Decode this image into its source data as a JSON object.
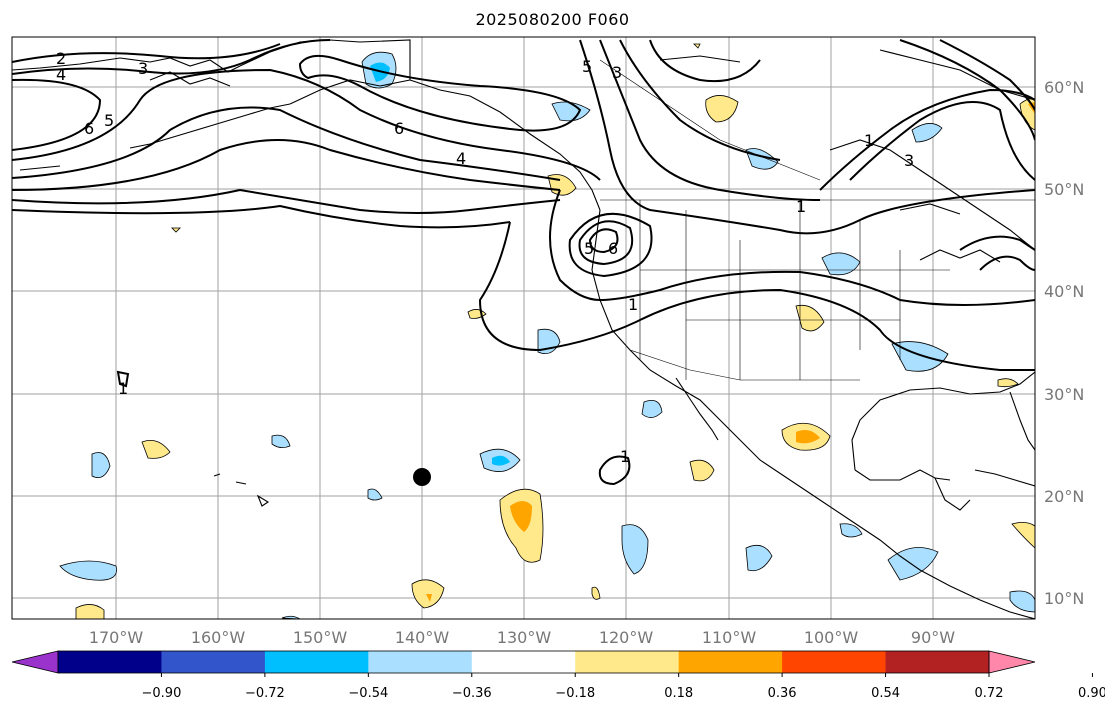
{
  "title": "2025080200 F060",
  "map": {
    "lon_labels": [
      "170°W",
      "160°W",
      "150°W",
      "140°W",
      "130°W",
      "120°W",
      "110°W",
      "100°W",
      "90°W"
    ],
    "lat_labels": [
      "60°N",
      "50°N",
      "40°N",
      "30°N",
      "20°N",
      "10°N"
    ],
    "contour_labels": [
      "2",
      "4",
      "3",
      "6",
      "5",
      "6",
      "4",
      "5",
      "3",
      "5",
      "6",
      "1",
      "3",
      "1",
      "1",
      "1",
      "1"
    ],
    "colors": {
      "coast": "#000000",
      "grid": "#999999",
      "contour": "#000000",
      "light_blue": "#aadfff",
      "cyan": "#00bfff",
      "light_yellow": "#ffe98a",
      "orange": "#ffa500"
    }
  },
  "colorbar": {
    "tick_labels": [
      "−0.90",
      "−0.72",
      "−0.54",
      "−0.36",
      "−0.18",
      "0.18",
      "0.36",
      "0.54",
      "0.72",
      "0.90"
    ],
    "colors": [
      "#9933cc",
      "#00008b",
      "#3355cc",
      "#00bfff",
      "#aadfff",
      "#ffffff",
      "#ffe98a",
      "#ffa500",
      "#ff4500",
      "#b22222",
      "#ff88aa"
    ]
  }
}
